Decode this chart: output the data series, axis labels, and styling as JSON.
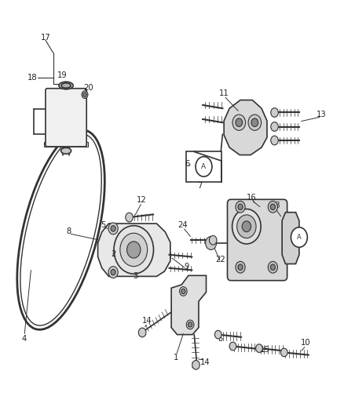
{
  "title": "",
  "background_color": "#ffffff",
  "line_color": "#333333",
  "label_color": "#222222",
  "fig_width": 4.38,
  "fig_height": 5.33,
  "dpi": 100
}
